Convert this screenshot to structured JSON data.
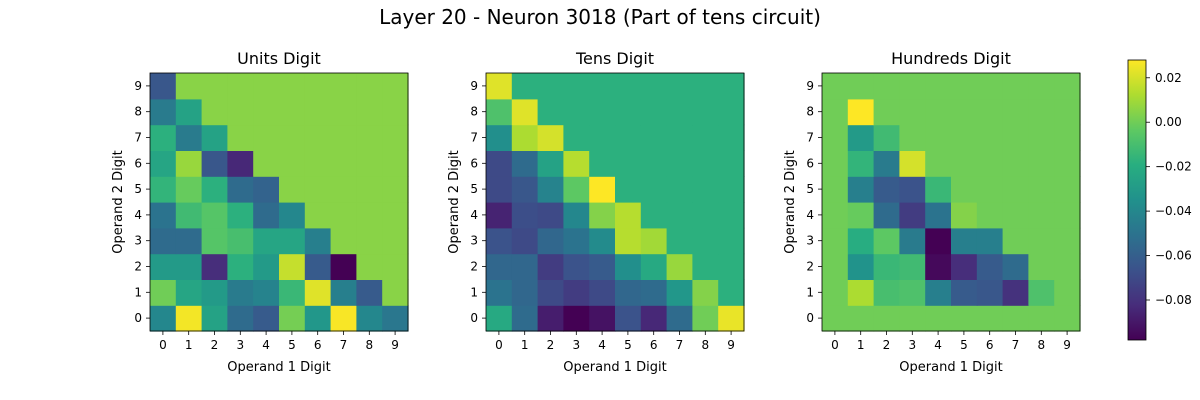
{
  "figure": {
    "title": "Layer 20 - Neuron 3018 (Part of tens circuit)"
  },
  "colorbar": {
    "vmin": -0.098,
    "vmax": 0.028,
    "ticks": [
      0.02,
      0.0,
      -0.02,
      -0.04,
      -0.06,
      -0.08
    ],
    "tick_labels": [
      "0.02",
      "0.00",
      "−0.02",
      "−0.04",
      "−0.06",
      "−0.08"
    ],
    "colormap": "viridis"
  },
  "chart_data": [
    {
      "type": "heatmap",
      "title": "Units Digit",
      "xlabel": "Operand 1 Digit",
      "ylabel": "Operand 2 Digit",
      "x_ticks": [
        "0",
        "1",
        "2",
        "3",
        "4",
        "5",
        "6",
        "7",
        "8",
        "9"
      ],
      "y_ticks": [
        "0",
        "1",
        "2",
        "3",
        "4",
        "5",
        "6",
        "7",
        "8",
        "9"
      ],
      "values": [
        [
          -0.04,
          0.026,
          -0.026,
          -0.054,
          -0.062,
          0.001,
          -0.032,
          0.027,
          -0.04,
          -0.048
        ],
        [
          0.0,
          -0.024,
          -0.03,
          -0.046,
          -0.042,
          -0.014,
          0.022,
          -0.044,
          -0.062,
          0.005
        ],
        [
          -0.03,
          -0.03,
          -0.082,
          -0.018,
          -0.03,
          0.017,
          -0.062,
          -0.098,
          0.005,
          0.005
        ],
        [
          -0.054,
          -0.054,
          -0.006,
          -0.01,
          -0.024,
          -0.024,
          -0.044,
          0.005,
          0.005,
          0.005
        ],
        [
          -0.05,
          -0.012,
          -0.006,
          -0.018,
          -0.054,
          -0.04,
          0.005,
          0.005,
          0.005,
          0.005
        ],
        [
          -0.016,
          -0.002,
          -0.018,
          -0.054,
          -0.058,
          0.005,
          0.005,
          0.005,
          0.005,
          0.005
        ],
        [
          -0.024,
          0.008,
          -0.064,
          -0.084,
          0.005,
          0.005,
          0.005,
          0.005,
          0.005,
          0.005
        ],
        [
          -0.018,
          -0.046,
          -0.026,
          0.005,
          0.005,
          0.005,
          0.005,
          0.005,
          0.005,
          0.005
        ],
        [
          -0.046,
          -0.026,
          0.005,
          0.005,
          0.005,
          0.005,
          0.005,
          0.005,
          0.005,
          0.005
        ],
        [
          -0.064,
          0.005,
          0.005,
          0.005,
          0.005,
          0.005,
          0.005,
          0.005,
          0.005,
          0.005
        ]
      ]
    },
    {
      "type": "heatmap",
      "title": "Tens Digit",
      "xlabel": "Operand 1 Digit",
      "ylabel": "Operand 2 Digit",
      "x_ticks": [
        "0",
        "1",
        "2",
        "3",
        "4",
        "5",
        "6",
        "7",
        "8",
        "9"
      ],
      "y_ticks": [
        "0",
        "1",
        "2",
        "3",
        "4",
        "5",
        "6",
        "7",
        "8",
        "9"
      ],
      "values": [
        [
          -0.022,
          -0.054,
          -0.088,
          -0.098,
          -0.092,
          -0.066,
          -0.084,
          -0.054,
          0.0,
          0.024
        ],
        [
          -0.05,
          -0.056,
          -0.07,
          -0.076,
          -0.07,
          -0.056,
          -0.054,
          -0.032,
          0.004,
          -0.018
        ],
        [
          -0.056,
          -0.056,
          -0.076,
          -0.066,
          -0.062,
          -0.036,
          -0.022,
          0.008,
          -0.018,
          -0.018
        ],
        [
          -0.066,
          -0.07,
          -0.056,
          -0.05,
          -0.038,
          0.014,
          0.01,
          -0.018,
          -0.018,
          -0.018
        ],
        [
          -0.086,
          -0.068,
          -0.07,
          -0.04,
          0.004,
          0.014,
          -0.018,
          -0.018,
          -0.018,
          -0.018
        ],
        [
          -0.07,
          -0.064,
          -0.042,
          -0.004,
          0.028,
          -0.018,
          -0.018,
          -0.018,
          -0.018,
          -0.018
        ],
        [
          -0.07,
          -0.054,
          -0.026,
          0.014,
          -0.018,
          -0.018,
          -0.018,
          -0.018,
          -0.018,
          -0.018
        ],
        [
          -0.036,
          0.012,
          0.02,
          -0.018,
          -0.018,
          -0.018,
          -0.018,
          -0.018,
          -0.018,
          -0.018
        ],
        [
          -0.008,
          0.022,
          -0.018,
          -0.018,
          -0.018,
          -0.018,
          -0.018,
          -0.018,
          -0.018,
          -0.018
        ],
        [
          0.022,
          -0.018,
          -0.018,
          -0.018,
          -0.018,
          -0.018,
          -0.018,
          -0.018,
          -0.018,
          -0.018
        ]
      ]
    },
    {
      "type": "heatmap",
      "title": "Hundreds Digit",
      "xlabel": "Operand 1 Digit",
      "ylabel": "Operand 2 Digit",
      "x_ticks": [
        "0",
        "1",
        "2",
        "3",
        "4",
        "5",
        "6",
        "7",
        "8",
        "9"
      ],
      "y_ticks": [
        "0",
        "1",
        "2",
        "3",
        "4",
        "5",
        "6",
        "7",
        "8",
        "9"
      ],
      "values": [
        [
          0.0,
          0.0,
          0.0,
          0.0,
          0.0,
          0.0,
          0.0,
          0.0,
          0.0,
          0.0
        ],
        [
          0.0,
          0.012,
          -0.01,
          -0.008,
          -0.044,
          -0.062,
          -0.064,
          -0.08,
          -0.008,
          0.0
        ],
        [
          0.0,
          -0.034,
          -0.014,
          -0.012,
          -0.095,
          -0.082,
          -0.062,
          -0.054,
          0.0,
          0.0
        ],
        [
          0.0,
          -0.02,
          -0.004,
          -0.046,
          -0.098,
          -0.044,
          -0.044,
          0.0,
          0.0,
          0.0
        ],
        [
          0.0,
          -0.002,
          -0.054,
          -0.076,
          -0.05,
          0.004,
          0.0,
          0.0,
          0.0,
          0.0
        ],
        [
          0.0,
          -0.044,
          -0.062,
          -0.066,
          -0.014,
          0.0,
          0.0,
          0.0,
          0.0,
          0.0
        ],
        [
          0.0,
          -0.016,
          -0.046,
          0.02,
          0.0,
          0.0,
          0.0,
          0.0,
          0.0,
          0.0
        ],
        [
          0.0,
          -0.03,
          -0.012,
          0.0,
          0.0,
          0.0,
          0.0,
          0.0,
          0.0,
          0.0
        ],
        [
          0.0,
          0.028,
          0.0,
          0.0,
          0.0,
          0.0,
          0.0,
          0.0,
          0.0,
          0.0
        ],
        [
          0.0,
          0.0,
          0.0,
          0.0,
          0.0,
          0.0,
          0.0,
          0.0,
          0.0,
          0.0
        ]
      ]
    }
  ]
}
